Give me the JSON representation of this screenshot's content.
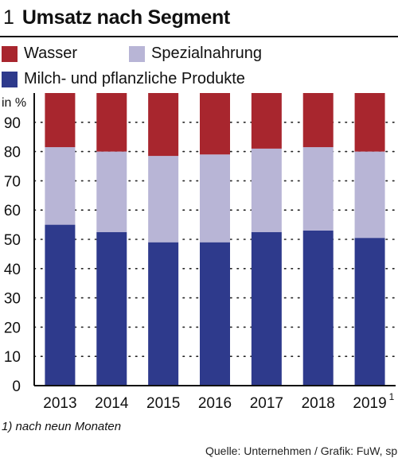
{
  "header": {
    "number": "1",
    "title": "Umsatz nach Segment"
  },
  "footnote": "1) nach neun Monaten",
  "source": "Quelle: Unternehmen / Grafik: FuW, sp",
  "chart_data": {
    "type": "bar",
    "stacked": true,
    "title": "Umsatz nach Segment",
    "ylabel": "in %",
    "ylim": [
      0,
      100
    ],
    "yticks": [
      0,
      10,
      20,
      30,
      40,
      50,
      60,
      70,
      80,
      90
    ],
    "grid": "dotted-horizontal",
    "legend_position": "top-left",
    "categories": [
      "2013",
      "2014",
      "2015",
      "2016",
      "2017",
      "2018",
      "2019"
    ],
    "category_superscripts": [
      "",
      "",
      "",
      "",
      "",
      "",
      "1"
    ],
    "series": [
      {
        "name": "Milch- und pflanzliche Produkte",
        "color": "#2e3a8c",
        "values": [
          55,
          52.5,
          49,
          49,
          52.5,
          53,
          50.5
        ]
      },
      {
        "name": "Spezialnahrung",
        "color": "#b8b5d6",
        "values": [
          26.5,
          27.5,
          29.5,
          30,
          28.5,
          28.5,
          29.5
        ]
      },
      {
        "name": "Wasser",
        "color": "#a8262e",
        "values": [
          18.5,
          20,
          21.5,
          21,
          19,
          18.5,
          20
        ]
      }
    ]
  }
}
